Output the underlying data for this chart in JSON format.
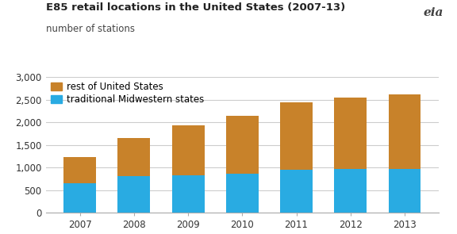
{
  "years": [
    "2007",
    "2008",
    "2009",
    "2010",
    "2011",
    "2012",
    "2013"
  ],
  "midwest": [
    650,
    820,
    840,
    870,
    950,
    970,
    970
  ],
  "rest": [
    580,
    840,
    1100,
    1280,
    1500,
    1580,
    1650
  ],
  "midwest_color": "#29ABE2",
  "rest_color": "#C8822A",
  "title": "E85 retail locations in the United States (2007-13)",
  "subtitle": "number of stations",
  "legend_rest": "rest of United States",
  "legend_midwest": "traditional Midwestern states",
  "ylim": [
    0,
    3000
  ],
  "yticks": [
    0,
    500,
    1000,
    1500,
    2000,
    2500,
    3000
  ],
  "background_color": "#FFFFFF",
  "grid_color": "#CCCCCC",
  "title_fontsize": 9.5,
  "subtitle_fontsize": 8.5,
  "tick_fontsize": 8.5,
  "legend_fontsize": 8.5,
  "bar_width": 0.6
}
